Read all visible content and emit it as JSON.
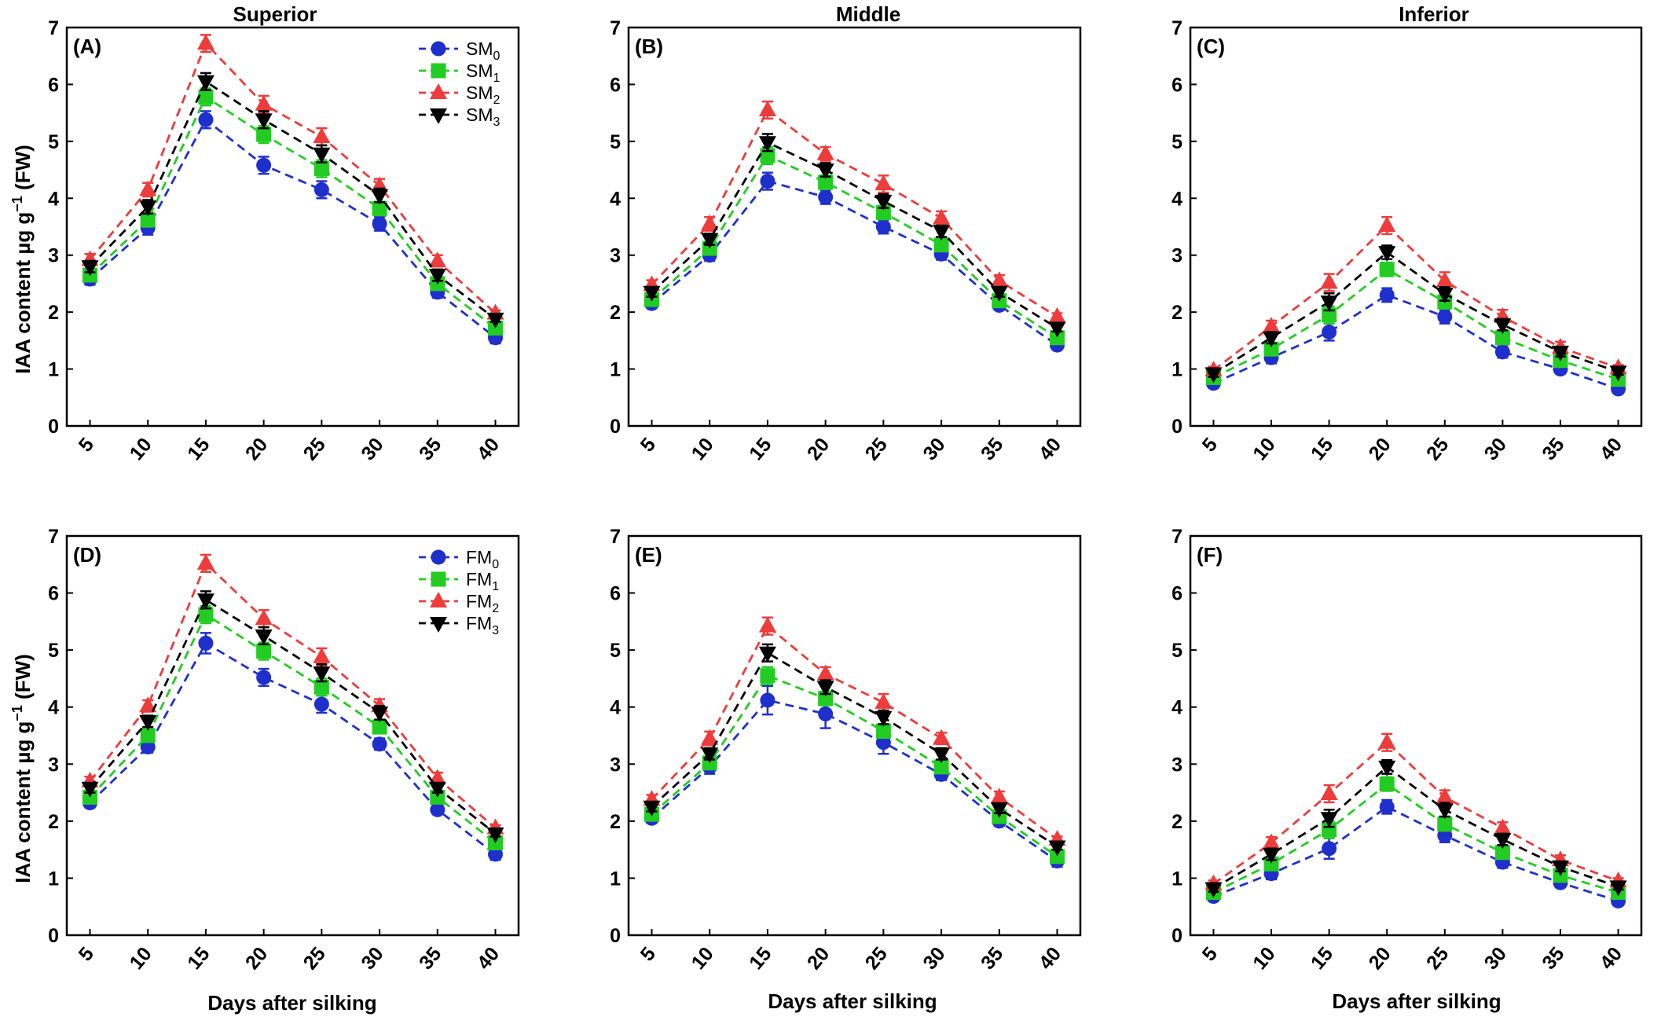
{
  "figure": {
    "ylabel": "IAA content µg g",
    "ylabel_sup": "−1",
    "ylabel_tail": " (FW)",
    "xlabel": "Days after silking"
  },
  "colors": {
    "M0": "#1f2fcc",
    "M1": "#22cc22",
    "M2": "#ee3b3b",
    "M3": "#000000"
  },
  "chart_data": [
    {
      "panel": "(A)",
      "title": "Superior",
      "type": "line",
      "x": [
        5,
        10,
        15,
        20,
        25,
        30,
        35,
        40
      ],
      "ylim": [
        0,
        7
      ],
      "series": [
        {
          "name": "SM",
          "sub": "0",
          "marker": "circle",
          "values": [
            2.58,
            3.48,
            5.38,
            4.58,
            4.15,
            3.55,
            2.35,
            1.55
          ],
          "err": [
            0.1,
            0.12,
            0.15,
            0.15,
            0.15,
            0.12,
            0.1,
            0.1
          ]
        },
        {
          "name": "SM",
          "sub": "1",
          "marker": "square",
          "values": [
            2.65,
            3.62,
            5.78,
            5.12,
            4.52,
            3.82,
            2.5,
            1.72
          ],
          "err": [
            0.1,
            0.12,
            0.15,
            0.15,
            0.15,
            0.12,
            0.1,
            0.1
          ]
        },
        {
          "name": "SM",
          "sub": "2",
          "marker": "triangle-up",
          "values": [
            2.92,
            4.15,
            6.72,
            5.65,
            5.08,
            4.22,
            2.9,
            1.98
          ],
          "err": [
            0.1,
            0.12,
            0.15,
            0.15,
            0.15,
            0.12,
            0.1,
            0.05
          ]
        },
        {
          "name": "SM",
          "sub": "3",
          "marker": "triangle-down",
          "values": [
            2.8,
            3.85,
            6.05,
            5.38,
            4.78,
            4.05,
            2.65,
            1.88
          ],
          "err": [
            0.1,
            0.12,
            0.15,
            0.15,
            0.15,
            0.12,
            0.1,
            0.05
          ]
        }
      ],
      "xticks": [
        "5",
        "10",
        "15",
        "20",
        "25",
        "30",
        "35",
        "40"
      ],
      "yticks": [
        "0",
        "1",
        "2",
        "3",
        "4",
        "5",
        "6",
        "7"
      ]
    },
    {
      "panel": "(B)",
      "title": "Middle",
      "type": "line",
      "x": [
        5,
        10,
        15,
        20,
        25,
        30,
        35,
        40
      ],
      "ylim": [
        0,
        7
      ],
      "series": [
        {
          "name": "SM",
          "sub": "0",
          "marker": "circle",
          "values": [
            2.15,
            3.0,
            4.3,
            4.02,
            3.5,
            3.02,
            2.12,
            1.42
          ],
          "err": [
            0.08,
            0.1,
            0.15,
            0.12,
            0.12,
            0.1,
            0.08,
            0.06
          ]
        },
        {
          "name": "SM",
          "sub": "1",
          "marker": "square",
          "values": [
            2.22,
            3.12,
            4.75,
            4.28,
            3.75,
            3.18,
            2.2,
            1.55
          ],
          "err": [
            0.08,
            0.1,
            0.15,
            0.12,
            0.12,
            0.1,
            0.08,
            0.06
          ]
        },
        {
          "name": "SM",
          "sub": "2",
          "marker": "triangle-up",
          "values": [
            2.48,
            3.55,
            5.55,
            4.78,
            4.25,
            3.65,
            2.55,
            1.92
          ],
          "err": [
            0.08,
            0.12,
            0.15,
            0.12,
            0.15,
            0.12,
            0.1,
            0.06
          ]
        },
        {
          "name": "SM",
          "sub": "3",
          "marker": "triangle-down",
          "values": [
            2.35,
            3.28,
            4.98,
            4.5,
            3.95,
            3.42,
            2.35,
            1.72
          ],
          "err": [
            0.08,
            0.1,
            0.15,
            0.12,
            0.12,
            0.1,
            0.08,
            0.06
          ]
        }
      ],
      "xticks": [
        "5",
        "10",
        "15",
        "20",
        "25",
        "30",
        "35",
        "40"
      ],
      "yticks": [
        "0",
        "1",
        "2",
        "3",
        "4",
        "5",
        "6",
        "7"
      ]
    },
    {
      "panel": "(C)",
      "title": "Inferior",
      "type": "line",
      "x": [
        5,
        10,
        15,
        20,
        25,
        30,
        35,
        40
      ],
      "ylim": [
        0,
        7
      ],
      "series": [
        {
          "name": "SM",
          "sub": "0",
          "marker": "circle",
          "values": [
            0.75,
            1.2,
            1.65,
            2.3,
            1.92,
            1.3,
            1.0,
            0.65
          ],
          "err": [
            0.08,
            0.1,
            0.15,
            0.12,
            0.12,
            0.1,
            0.08,
            0.08
          ]
        },
        {
          "name": "SM",
          "sub": "1",
          "marker": "square",
          "values": [
            0.85,
            1.35,
            1.95,
            2.75,
            2.18,
            1.55,
            1.15,
            0.82
          ],
          "err": [
            0.08,
            0.1,
            0.15,
            0.12,
            0.12,
            0.1,
            0.08,
            0.06
          ]
        },
        {
          "name": "SM",
          "sub": "2",
          "marker": "triangle-up",
          "values": [
            0.98,
            1.75,
            2.52,
            3.52,
            2.55,
            1.92,
            1.38,
            1.02
          ],
          "err": [
            0.06,
            0.1,
            0.15,
            0.15,
            0.15,
            0.12,
            0.1,
            0.05
          ]
        },
        {
          "name": "SM",
          "sub": "3",
          "marker": "triangle-down",
          "values": [
            0.92,
            1.55,
            2.18,
            3.05,
            2.32,
            1.78,
            1.3,
            0.95
          ],
          "err": [
            0.06,
            0.1,
            0.15,
            0.12,
            0.12,
            0.1,
            0.08,
            0.05
          ]
        }
      ],
      "xticks": [
        "5",
        "10",
        "15",
        "20",
        "25",
        "30",
        "35",
        "40"
      ],
      "yticks": [
        "0",
        "1",
        "2",
        "3",
        "4",
        "5",
        "6",
        "7"
      ]
    },
    {
      "panel": "(D)",
      "title": "",
      "type": "line",
      "x": [
        5,
        10,
        15,
        20,
        25,
        30,
        35,
        40
      ],
      "ylim": [
        0,
        7
      ],
      "series": [
        {
          "name": "FM",
          "sub": "0",
          "marker": "circle",
          "values": [
            2.32,
            3.3,
            5.12,
            4.52,
            4.05,
            3.35,
            2.2,
            1.42
          ],
          "err": [
            0.08,
            0.1,
            0.18,
            0.15,
            0.15,
            0.1,
            0.08,
            0.1
          ]
        },
        {
          "name": "FM",
          "sub": "1",
          "marker": "square",
          "values": [
            2.42,
            3.5,
            5.62,
            4.98,
            4.35,
            3.65,
            2.42,
            1.62
          ],
          "err": [
            0.08,
            0.1,
            0.15,
            0.15,
            0.15,
            0.1,
            0.08,
            0.08
          ]
        },
        {
          "name": "FM",
          "sub": "2",
          "marker": "triangle-up",
          "values": [
            2.7,
            4.02,
            6.52,
            5.55,
            4.88,
            4.02,
            2.75,
            1.88
          ],
          "err": [
            0.08,
            0.1,
            0.15,
            0.15,
            0.15,
            0.12,
            0.1,
            0.05
          ]
        },
        {
          "name": "FM",
          "sub": "3",
          "marker": "triangle-down",
          "values": [
            2.58,
            3.75,
            5.88,
            5.25,
            4.6,
            3.9,
            2.58,
            1.78
          ],
          "err": [
            0.08,
            0.1,
            0.15,
            0.15,
            0.15,
            0.12,
            0.08,
            0.05
          ]
        }
      ],
      "xticks": [
        "5",
        "10",
        "15",
        "20",
        "25",
        "30",
        "35",
        "40"
      ],
      "yticks": [
        "0",
        "1",
        "2",
        "3",
        "4",
        "5",
        "6",
        "7"
      ]
    },
    {
      "panel": "(E)",
      "title": "",
      "type": "line",
      "x": [
        5,
        10,
        15,
        20,
        25,
        30,
        35,
        40
      ],
      "ylim": [
        0,
        7
      ],
      "series": [
        {
          "name": "FM",
          "sub": "0",
          "marker": "circle",
          "values": [
            2.05,
            2.95,
            4.12,
            3.88,
            3.38,
            2.82,
            2.0,
            1.3
          ],
          "err": [
            0.08,
            0.12,
            0.25,
            0.25,
            0.2,
            0.1,
            0.08,
            0.1
          ]
        },
        {
          "name": "FM",
          "sub": "1",
          "marker": "square",
          "values": [
            2.12,
            3.02,
            4.55,
            4.15,
            3.58,
            2.95,
            2.08,
            1.38
          ],
          "err": [
            0.08,
            0.1,
            0.15,
            0.12,
            0.12,
            0.1,
            0.08,
            0.08
          ]
        },
        {
          "name": "FM",
          "sub": "2",
          "marker": "triangle-up",
          "values": [
            2.38,
            3.45,
            5.42,
            4.58,
            4.08,
            3.45,
            2.42,
            1.68
          ],
          "err": [
            0.08,
            0.12,
            0.15,
            0.12,
            0.15,
            0.1,
            0.1,
            0.05
          ]
        },
        {
          "name": "FM",
          "sub": "3",
          "marker": "triangle-down",
          "values": [
            2.25,
            3.18,
            4.95,
            4.35,
            3.82,
            3.18,
            2.22,
            1.55
          ],
          "err": [
            0.08,
            0.1,
            0.15,
            0.12,
            0.12,
            0.1,
            0.08,
            0.05
          ]
        }
      ],
      "xticks": [
        "5",
        "10",
        "15",
        "20",
        "25",
        "30",
        "35",
        "40"
      ],
      "yticks": [
        "0",
        "1",
        "2",
        "3",
        "4",
        "5",
        "6",
        "7"
      ]
    },
    {
      "panel": "(F)",
      "title": "",
      "type": "line",
      "x": [
        5,
        10,
        15,
        20,
        25,
        30,
        35,
        40
      ],
      "ylim": [
        0,
        7
      ],
      "series": [
        {
          "name": "FM",
          "sub": "0",
          "marker": "circle",
          "values": [
            0.68,
            1.08,
            1.52,
            2.25,
            1.75,
            1.28,
            0.92,
            0.6
          ],
          "err": [
            0.06,
            0.1,
            0.18,
            0.12,
            0.12,
            0.1,
            0.08,
            0.08
          ]
        },
        {
          "name": "FM",
          "sub": "1",
          "marker": "square",
          "values": [
            0.75,
            1.25,
            1.85,
            2.65,
            1.95,
            1.45,
            1.05,
            0.75
          ],
          "err": [
            0.06,
            0.1,
            0.15,
            0.12,
            0.12,
            0.1,
            0.08,
            0.06
          ]
        },
        {
          "name": "FM",
          "sub": "2",
          "marker": "triangle-up",
          "values": [
            0.9,
            1.62,
            2.48,
            3.38,
            2.42,
            1.88,
            1.32,
            0.95
          ],
          "err": [
            0.06,
            0.1,
            0.15,
            0.15,
            0.12,
            0.1,
            0.08,
            0.05
          ]
        },
        {
          "name": "FM",
          "sub": "3",
          "marker": "triangle-down",
          "values": [
            0.82,
            1.42,
            2.05,
            2.95,
            2.2,
            1.68,
            1.2,
            0.85
          ],
          "err": [
            0.06,
            0.1,
            0.15,
            0.12,
            0.12,
            0.1,
            0.08,
            0.05
          ]
        }
      ],
      "xticks": [
        "5",
        "10",
        "15",
        "20",
        "25",
        "30",
        "35",
        "40"
      ],
      "yticks": [
        "0",
        "1",
        "2",
        "3",
        "4",
        "5",
        "6",
        "7"
      ]
    }
  ]
}
